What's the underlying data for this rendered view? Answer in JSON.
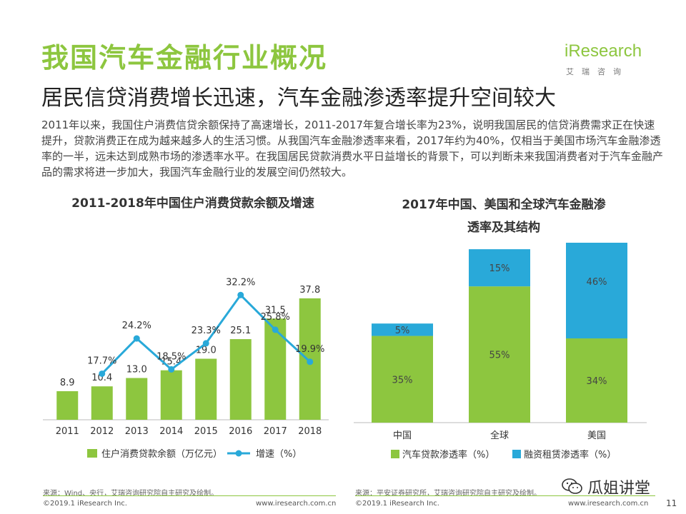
{
  "page": {
    "title": "我国汽车金融行业概况",
    "subtitle": "居民信贷消费增长迅速，汽车金融渗透率提升空间较大",
    "intro": "2011年以来，我国住户消费信贷余额保持了高速增长，2011-2017年复合增长率为23%，说明我国居民的信贷消费需求正在快速提升，贷款消费正在成为越来越多人的生活习惯。从我国汽车金融渗透率来看，2017年约为40%，仅相当于美国市场汽车金融渗透率的一半，远未达到成熟市场的渗透率水平。在我国居民贷款消费水平日益增长的背景下，可以判断未来我国消费者对于汽车金融产品的需求将进一步加大，我国汽车金融行业的发展空间仍然较大。",
    "logo_text": "iResearch",
    "logo_sub": "艾瑞咨询",
    "wechat_label": "瓜姐讲堂",
    "page_number": "11",
    "accent_color": "#8dc63f",
    "secondary_color": "#29a9d9"
  },
  "left_panel": {
    "title": "2011-2018年中国住户消费贷款余额及增速",
    "source": "来源：Wind、央行，艾瑞咨询研究院自主研究及绘制。",
    "copyright": "©2019.1 iResearch Inc.",
    "website": "www.iresearch.com.cn"
  },
  "right_panel": {
    "title_line1": "2017年中国、美国和全球汽车金融渗",
    "title_line2": "透率及其结构",
    "source": "来源：平安证券研究所，艾瑞咨询研究院自主研究及绘制。",
    "copyright": "©2019.1 iResearch Inc.",
    "website": "www.iresearch.com.cn"
  },
  "chart_data": [
    {
      "type": "bar",
      "title": "2011-2018年中国住户消费贷款余额及增速",
      "categories": [
        "2011",
        "2012",
        "2013",
        "2014",
        "2015",
        "2016",
        "2017",
        "2018"
      ],
      "series": [
        {
          "name": "住户消费贷款余额（万亿元）",
          "type": "bar",
          "color": "#8dc63f",
          "values": [
            8.9,
            10.4,
            13.0,
            15.4,
            19.0,
            25.1,
            31.5,
            37.8
          ],
          "labels": [
            "8.9",
            "10.4",
            "13.0",
            "15.4",
            "19.0",
            "25.1",
            "31.5",
            "37.8"
          ]
        },
        {
          "name": "增速（%）",
          "type": "line",
          "color": "#29a9d9",
          "values": [
            null,
            17.7,
            24.2,
            18.5,
            23.3,
            32.2,
            25.8,
            19.9
          ],
          "labels": [
            "",
            "17.7%",
            "24.2%",
            "18.5%",
            "23.3%",
            "32.2%",
            "25.8%",
            "19.9%"
          ]
        }
      ],
      "legend_position": "bottom"
    },
    {
      "type": "bar",
      "stacked": true,
      "title": "2017年中国、美国和全球汽车金融渗透率及其结构",
      "categories": [
        "中国",
        "全球",
        "美国"
      ],
      "series": [
        {
          "name": "汽车贷款渗透率（%）",
          "color": "#8dc63f",
          "values": [
            35,
            55,
            34
          ],
          "labels": [
            "35%",
            "55%",
            "34%"
          ]
        },
        {
          "name": "融资租赁渗透率（%）",
          "color": "#29a9d9",
          "values": [
            5,
            15,
            46
          ],
          "labels": [
            "5%",
            "15%",
            "46%"
          ]
        }
      ],
      "legend_position": "bottom"
    }
  ]
}
